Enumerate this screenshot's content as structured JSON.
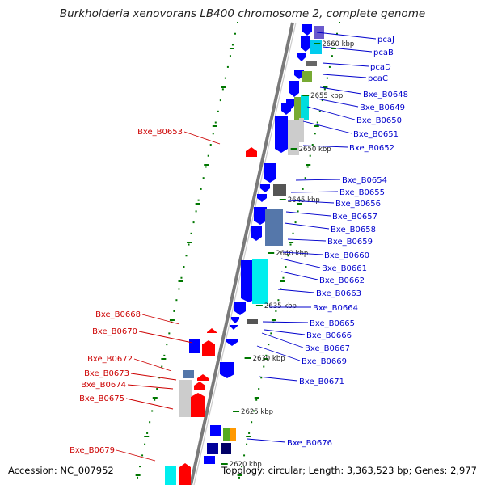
{
  "title": "Burkholderia xenovorans LB400 chromosome 2, complete genome",
  "footer": {
    "accession": "Accession: NC_007952",
    "topology": "Topology: circular; Length: 3,363,523 bp; Genes: 2,977"
  },
  "colors": {
    "right_label": "#0000cc",
    "left_label": "#cc0000",
    "forward_feature": "#ff0000",
    "reverse_feature": "#0000ff",
    "tick": "#007700",
    "backbone": "#7a7a7a"
  },
  "kbp_marks": [
    "2660 kbp",
    "2655 kbp",
    "2650 kbp",
    "2645 kbp",
    "2640 kbp",
    "2635 kbp",
    "2630 kbp",
    "2625 kbp",
    "2620 kbp"
  ],
  "right_labels": [
    "pcaJ",
    "pcaB",
    "pcaD",
    "pcaC",
    "Bxe_B0648",
    "Bxe_B0649",
    "Bxe_B0650",
    "Bxe_B0651",
    "Bxe_B0652",
    "Bxe_B0654",
    "Bxe_B0655",
    "Bxe_B0656",
    "Bxe_B0657",
    "Bxe_B0658",
    "Bxe_B0659",
    "Bxe_B0660",
    "Bxe_B0661",
    "Bxe_B0662",
    "Bxe_B0663",
    "Bxe_B0664",
    "Bxe_B0665",
    "Bxe_B0666",
    "Bxe_B0667",
    "Bxe_B0669",
    "Bxe_B0671",
    "Bxe_B0676"
  ],
  "left_labels": [
    "Bxe_B0653",
    "Bxe_B0668",
    "Bxe_B0670",
    "Bxe_B0672",
    "Bxe_B0673",
    "Bxe_B0674",
    "Bxe_B0675",
    "Bxe_B0679"
  ]
}
